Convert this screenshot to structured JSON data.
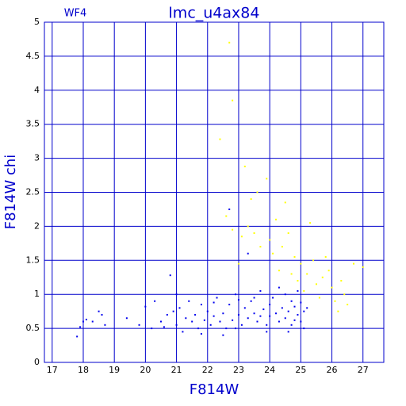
{
  "chart_data": {
    "type": "scatter",
    "title": "lmc_u4ax84",
    "subtitle": "WF4",
    "x_label": "F814W",
    "y_label": "F814W chi",
    "xlim": [
      16.75,
      27.67
    ],
    "ylim": [
      0,
      5
    ],
    "xticks": [
      17,
      18,
      19,
      20,
      21,
      22,
      23,
      24,
      25,
      26,
      27
    ],
    "yticks": [
      0,
      0.5,
      1,
      1.5,
      2,
      2.5,
      3,
      3.5,
      4,
      4.5,
      5
    ],
    "grid": true,
    "series": [
      {
        "color": "#0000ee",
        "x": [
          17.8,
          17.9,
          18.0,
          18.1,
          18.3,
          18.6,
          18.7,
          18.5,
          19.4,
          19.8,
          20.0,
          20.2,
          20.3,
          20.5,
          20.7,
          20.8,
          20.9,
          21.0,
          21.1,
          21.2,
          21.3,
          21.4,
          21.5,
          21.6,
          21.7,
          21.8,
          21.9,
          22.0,
          22.1,
          22.2,
          22.3,
          22.4,
          22.5,
          22.6,
          22.7,
          22.7,
          22.8,
          22.9,
          23.0,
          23.1,
          23.2,
          23.3,
          23.3,
          23.4,
          23.5,
          23.6,
          23.7,
          23.8,
          23.9,
          24.0,
          24.0,
          24.1,
          24.2,
          24.3,
          24.3,
          24.4,
          24.5,
          24.5,
          24.6,
          24.7,
          24.7,
          24.8,
          24.9,
          24.9,
          25.0,
          25.0,
          25.1,
          25.1,
          23.9,
          22.5,
          21.8,
          23.5,
          22.9,
          24.6,
          25.2,
          24.8,
          23.7,
          22.2,
          21.0,
          23.0,
          20.6
        ],
        "values": [
          0.38,
          0.52,
          0.6,
          0.63,
          0.6,
          0.7,
          0.55,
          0.75,
          0.65,
          0.55,
          0.82,
          0.5,
          0.9,
          0.6,
          0.7,
          1.28,
          0.75,
          0.55,
          0.8,
          0.45,
          0.65,
          0.9,
          0.6,
          0.7,
          0.5,
          0.85,
          0.62,
          0.75,
          0.55,
          0.68,
          0.95,
          0.6,
          0.72,
          0.5,
          2.25,
          0.85,
          0.62,
          1.0,
          0.7,
          0.55,
          0.8,
          0.65,
          1.6,
          0.9,
          0.72,
          0.6,
          1.05,
          0.78,
          0.55,
          0.85,
          0.68,
          0.95,
          0.72,
          0.6,
          1.1,
          0.8,
          0.65,
          1.0,
          0.75,
          0.55,
          0.9,
          0.82,
          0.7,
          1.05,
          0.6,
          0.88,
          0.75,
          0.5,
          0.45,
          0.4,
          0.42,
          0.95,
          0.5,
          0.45,
          0.8,
          0.62,
          0.68,
          0.88,
          1.0,
          0.92,
          0.52
        ]
      },
      {
        "color": "#ffff00",
        "x": [
          22.7,
          22.8,
          22.4,
          23.2,
          23.6,
          23.9,
          22.6,
          23.4,
          24.5,
          24.2,
          22.8,
          23.1,
          24.4,
          24.6,
          24.8,
          25.0,
          25.3,
          23.7,
          24.1,
          24.9,
          25.2,
          25.5,
          25.7,
          26.0,
          26.4,
          26.5,
          26.2,
          26.7,
          27.0,
          24.7,
          25.4,
          25.8,
          26.3,
          23.0,
          24.3,
          25.1,
          25.6,
          23.5,
          23.3,
          24.0,
          26.1,
          25.9
        ],
        "values": [
          4.7,
          3.85,
          3.28,
          2.88,
          2.5,
          2.7,
          2.15,
          2.4,
          2.35,
          2.1,
          1.95,
          1.85,
          1.7,
          1.9,
          1.55,
          1.45,
          2.05,
          1.7,
          1.6,
          1.2,
          1.3,
          1.15,
          1.25,
          1.1,
          1.0,
          0.85,
          0.75,
          1.45,
          1.4,
          1.3,
          1.5,
          1.55,
          1.2,
          1.45,
          1.35,
          1.05,
          0.95,
          1.9,
          2.0,
          1.8,
          0.9,
          1.35
        ]
      }
    ]
  }
}
